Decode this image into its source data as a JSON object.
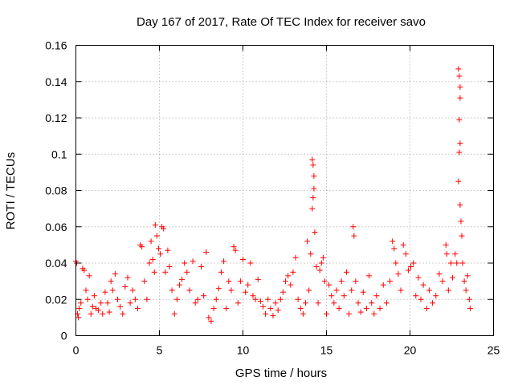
{
  "chart_data": {
    "type": "scatter",
    "title": "Day 167 of 2017, Rate Of TEC Index for receiver savo",
    "xlabel": "GPS time / hours",
    "ylabel": "ROTI / TECUs",
    "xlim": [
      0,
      25
    ],
    "ylim": [
      0,
      0.16
    ],
    "xticks": [
      0,
      5,
      10,
      15,
      20,
      25
    ],
    "xtick_labels": [
      "0",
      "5",
      "10",
      "15",
      "20",
      "25"
    ],
    "yticks": [
      0,
      0.02,
      0.04,
      0.06,
      0.08,
      0.1,
      0.12,
      0.14,
      0.16
    ],
    "ytick_labels": [
      "0",
      "0.02",
      "0.04",
      "0.06",
      "0.08",
      "0.1",
      "0.12",
      "0.14",
      "0.16"
    ],
    "grid": true,
    "marker": "plus",
    "color": "#ff0000",
    "series": [
      {
        "name": "ROTI",
        "points": [
          [
            0.0,
            0.041
          ],
          [
            0.05,
            0.04
          ],
          [
            0.1,
            0.012
          ],
          [
            0.15,
            0.01
          ],
          [
            0.2,
            0.015
          ],
          [
            0.3,
            0.018
          ],
          [
            0.4,
            0.037
          ],
          [
            0.5,
            0.036
          ],
          [
            0.6,
            0.025
          ],
          [
            0.7,
            0.02
          ],
          [
            0.8,
            0.033
          ],
          [
            0.9,
            0.012
          ],
          [
            1.0,
            0.016
          ],
          [
            1.1,
            0.022
          ],
          [
            1.2,
            0.015
          ],
          [
            1.35,
            0.014
          ],
          [
            1.5,
            0.018
          ],
          [
            1.6,
            0.012
          ],
          [
            1.75,
            0.024
          ],
          [
            1.9,
            0.018
          ],
          [
            2.0,
            0.013
          ],
          [
            2.1,
            0.03
          ],
          [
            2.2,
            0.025
          ],
          [
            2.35,
            0.034
          ],
          [
            2.5,
            0.02
          ],
          [
            2.65,
            0.016
          ],
          [
            2.8,
            0.012
          ],
          [
            2.95,
            0.027
          ],
          [
            3.1,
            0.032
          ],
          [
            3.25,
            0.018
          ],
          [
            3.4,
            0.025
          ],
          [
            3.55,
            0.02
          ],
          [
            3.7,
            0.015
          ],
          [
            3.85,
            0.05
          ],
          [
            3.95,
            0.049
          ],
          [
            4.1,
            0.03
          ],
          [
            4.25,
            0.02
          ],
          [
            4.4,
            0.04
          ],
          [
            4.5,
            0.052
          ],
          [
            4.6,
            0.042
          ],
          [
            4.7,
            0.035
          ],
          [
            4.75,
            0.061
          ],
          [
            4.85,
            0.055
          ],
          [
            4.95,
            0.048
          ],
          [
            5.05,
            0.045
          ],
          [
            5.15,
            0.06
          ],
          [
            5.25,
            0.059
          ],
          [
            5.35,
            0.035
          ],
          [
            5.5,
            0.047
          ],
          [
            5.6,
            0.038
          ],
          [
            5.75,
            0.025
          ],
          [
            5.9,
            0.012
          ],
          [
            6.05,
            0.02
          ],
          [
            6.2,
            0.028
          ],
          [
            6.35,
            0.031
          ],
          [
            6.5,
            0.04
          ],
          [
            6.65,
            0.035
          ],
          [
            6.8,
            0.025
          ],
          [
            7.0,
            0.041
          ],
          [
            7.15,
            0.018
          ],
          [
            7.3,
            0.02
          ],
          [
            7.5,
            0.038
          ],
          [
            7.65,
            0.022
          ],
          [
            7.8,
            0.046
          ],
          [
            7.95,
            0.01
          ],
          [
            8.1,
            0.008
          ],
          [
            8.25,
            0.015
          ],
          [
            8.4,
            0.02
          ],
          [
            8.55,
            0.026
          ],
          [
            8.7,
            0.035
          ],
          [
            8.85,
            0.041
          ],
          [
            9.0,
            0.015
          ],
          [
            9.15,
            0.03
          ],
          [
            9.3,
            0.025
          ],
          [
            9.45,
            0.049
          ],
          [
            9.55,
            0.047
          ],
          [
            9.7,
            0.018
          ],
          [
            9.85,
            0.03
          ],
          [
            10.0,
            0.042
          ],
          [
            10.15,
            0.024
          ],
          [
            10.3,
            0.028
          ],
          [
            10.45,
            0.04
          ],
          [
            10.6,
            0.022
          ],
          [
            10.75,
            0.02
          ],
          [
            10.9,
            0.031
          ],
          [
            11.05,
            0.019
          ],
          [
            11.2,
            0.016
          ],
          [
            11.35,
            0.012
          ],
          [
            11.5,
            0.02
          ],
          [
            11.65,
            0.015
          ],
          [
            11.8,
            0.011
          ],
          [
            11.95,
            0.018
          ],
          [
            12.1,
            0.014
          ],
          [
            12.25,
            0.02
          ],
          [
            12.4,
            0.024
          ],
          [
            12.55,
            0.03
          ],
          [
            12.7,
            0.033
          ],
          [
            12.85,
            0.028
          ],
          [
            13.0,
            0.035
          ],
          [
            13.15,
            0.043
          ],
          [
            13.3,
            0.02
          ],
          [
            13.45,
            0.015
          ],
          [
            13.6,
            0.012
          ],
          [
            13.75,
            0.018
          ],
          [
            13.85,
            0.052
          ],
          [
            13.95,
            0.025
          ],
          [
            14.05,
            0.045
          ],
          [
            14.15,
            0.097
          ],
          [
            14.2,
            0.094
          ],
          [
            14.25,
            0.088
          ],
          [
            14.25,
            0.081
          ],
          [
            14.2,
            0.076
          ],
          [
            14.15,
            0.07
          ],
          [
            14.3,
            0.057
          ],
          [
            14.4,
            0.038
          ],
          [
            14.5,
            0.018
          ],
          [
            14.6,
            0.036
          ],
          [
            14.7,
            0.04
          ],
          [
            14.8,
            0.043
          ],
          [
            14.9,
            0.03
          ],
          [
            15.0,
            0.012
          ],
          [
            15.15,
            0.028
          ],
          [
            15.3,
            0.022
          ],
          [
            15.45,
            0.018
          ],
          [
            15.6,
            0.025
          ],
          [
            15.75,
            0.015
          ],
          [
            15.9,
            0.03
          ],
          [
            16.05,
            0.022
          ],
          [
            16.2,
            0.035
          ],
          [
            16.35,
            0.012
          ],
          [
            16.5,
            0.025
          ],
          [
            16.6,
            0.06
          ],
          [
            16.65,
            0.055
          ],
          [
            16.75,
            0.03
          ],
          [
            16.9,
            0.018
          ],
          [
            17.05,
            0.013
          ],
          [
            17.2,
            0.024
          ],
          [
            17.4,
            0.015
          ],
          [
            17.55,
            0.033
          ],
          [
            17.7,
            0.018
          ],
          [
            17.85,
            0.012
          ],
          [
            18.0,
            0.022
          ],
          [
            18.2,
            0.015
          ],
          [
            18.4,
            0.028
          ],
          [
            18.6,
            0.018
          ],
          [
            18.8,
            0.03
          ],
          [
            18.95,
            0.052
          ],
          [
            19.05,
            0.048
          ],
          [
            19.15,
            0.04
          ],
          [
            19.3,
            0.034
          ],
          [
            19.45,
            0.025
          ],
          [
            19.6,
            0.05
          ],
          [
            19.75,
            0.045
          ],
          [
            19.9,
            0.036
          ],
          [
            20.05,
            0.038
          ],
          [
            20.2,
            0.04
          ],
          [
            20.35,
            0.022
          ],
          [
            20.5,
            0.032
          ],
          [
            20.65,
            0.02
          ],
          [
            20.8,
            0.028
          ],
          [
            21.0,
            0.015
          ],
          [
            21.15,
            0.025
          ],
          [
            21.35,
            0.018
          ],
          [
            21.55,
            0.022
          ],
          [
            21.75,
            0.034
          ],
          [
            21.95,
            0.03
          ],
          [
            22.15,
            0.05
          ],
          [
            22.2,
            0.045
          ],
          [
            22.3,
            0.025
          ],
          [
            22.45,
            0.04
          ],
          [
            22.55,
            0.032
          ],
          [
            22.7,
            0.045
          ],
          [
            22.8,
            0.04
          ],
          [
            22.9,
            0.147
          ],
          [
            22.95,
            0.143
          ],
          [
            23.0,
            0.137
          ],
          [
            23.0,
            0.131
          ],
          [
            22.95,
            0.119
          ],
          [
            23.0,
            0.106
          ],
          [
            22.95,
            0.101
          ],
          [
            22.9,
            0.085
          ],
          [
            23.0,
            0.072
          ],
          [
            23.05,
            0.063
          ],
          [
            23.1,
            0.055
          ],
          [
            23.15,
            0.04
          ],
          [
            23.25,
            0.03
          ],
          [
            23.35,
            0.025
          ],
          [
            23.45,
            0.033
          ],
          [
            23.55,
            0.02
          ],
          [
            23.6,
            0.015
          ]
        ]
      }
    ]
  }
}
